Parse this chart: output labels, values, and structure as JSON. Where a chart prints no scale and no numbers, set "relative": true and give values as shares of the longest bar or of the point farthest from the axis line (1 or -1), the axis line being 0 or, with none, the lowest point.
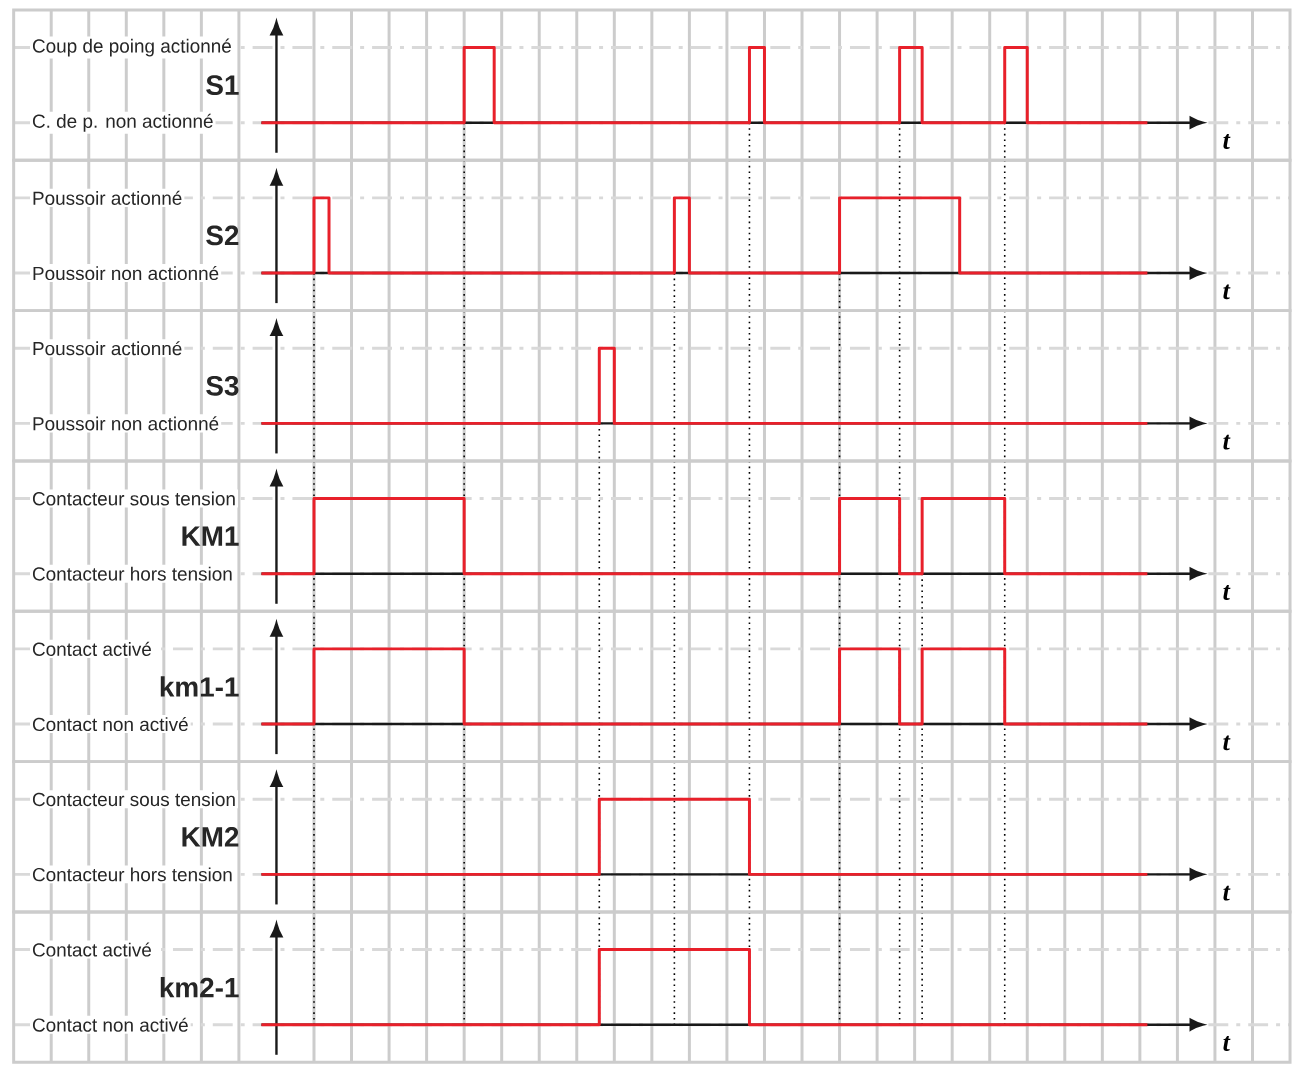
{
  "chart_data": [
    {
      "type": "step",
      "relative": true,
      "ylabel": "S1",
      "xlabel": "t",
      "grid": true,
      "categories": [
        null,
        null,
        null,
        null,
        null,
        null,
        null,
        null,
        null,
        null,
        null,
        null,
        null,
        null,
        null,
        null,
        null,
        null,
        null,
        null,
        null,
        null,
        null,
        null,
        null,
        null,
        null,
        null,
        null,
        null,
        null,
        null,
        null,
        null,
        null,
        null,
        null,
        null,
        null,
        null,
        null,
        null,
        null,
        null,
        null,
        null,
        null,
        null,
        null,
        null,
        null,
        null,
        null,
        null,
        null,
        null,
        null,
        null,
        null,
        null,
        null,
        null,
        null,
        null,
        null,
        null,
        null,
        null,
        null,
        null,
        null,
        null,
        null,
        null,
        null,
        null,
        null,
        null,
        null,
        null,
        null,
        null,
        null,
        null,
        null,
        null,
        null,
        null,
        null,
        null,
        null,
        null,
        null,
        null,
        null,
        null,
        null,
        null,
        null,
        null,
        null,
        null,
        null,
        null,
        null,
        null,
        null,
        null,
        null,
        null,
        null,
        null,
        null,
        null,
        null,
        null,
        null,
        null,
        null
      ],
      "annotations": [
        "C. de p. non actionné",
        "Coup de poing actionné"
      ],
      "series": [
        {
          "color": "#e8202a",
          "values": [
            0,
            0,
            0,
            0,
            0,
            0,
            0,
            0,
            0,
            0,
            0,
            0,
            0,
            0,
            0,
            0,
            0,
            0,
            0,
            0,
            0,
            0,
            0,
            0,
            0,
            0,
            0,
            1,
            1,
            1,
            1,
            0,
            0,
            0,
            0,
            0,
            0,
            0,
            0,
            0,
            0,
            0,
            0,
            0,
            0,
            0,
            0,
            0,
            0,
            0,
            0,
            0,
            0,
            0,
            0,
            0,
            0,
            0,
            0,
            0,
            0,
            0,
            0,
            0,
            0,
            1,
            1,
            0,
            0,
            0,
            0,
            0,
            0,
            0,
            0,
            0,
            0,
            0,
            0,
            0,
            0,
            0,
            0,
            0,
            0,
            1,
            1,
            1,
            0,
            0,
            0,
            0,
            0,
            0,
            0,
            0,
            0,
            0,
            0,
            1,
            1,
            1,
            0,
            0,
            0,
            0,
            0,
            0,
            0,
            0,
            0,
            0,
            0,
            0,
            0,
            0,
            0,
            0,
            0
          ]
        }
      ]
    },
    {
      "type": "step",
      "relative": true,
      "ylabel": "S2",
      "xlabel": "t",
      "grid": true,
      "categories": [
        null,
        null,
        null,
        null,
        null,
        null,
        null,
        null,
        null,
        null,
        null,
        null,
        null,
        null,
        null,
        null,
        null,
        null,
        null,
        null,
        null,
        null,
        null,
        null,
        null,
        null,
        null,
        null,
        null,
        null,
        null,
        null,
        null,
        null,
        null,
        null,
        null,
        null,
        null,
        null,
        null,
        null,
        null,
        null,
        null,
        null,
        null,
        null,
        null,
        null,
        null,
        null,
        null,
        null,
        null,
        null,
        null,
        null,
        null,
        null,
        null,
        null,
        null,
        null,
        null,
        null,
        null,
        null,
        null,
        null,
        null,
        null,
        null,
        null,
        null,
        null,
        null,
        null,
        null,
        null,
        null,
        null,
        null,
        null,
        null,
        null,
        null,
        null,
        null,
        null,
        null,
        null,
        null,
        null,
        null,
        null,
        null,
        null,
        null,
        null,
        null,
        null,
        null,
        null,
        null,
        null,
        null,
        null,
        null,
        null,
        null,
        null,
        null,
        null,
        null,
        null,
        null,
        null,
        null
      ],
      "annotations": [
        "Poussoir non actionné",
        "Poussoir actionné"
      ],
      "series": [
        {
          "color": "#e8202a",
          "values": [
            0,
            0,
            0,
            0,
            0,
            0,
            0,
            1,
            1,
            0,
            0,
            0,
            0,
            0,
            0,
            0,
            0,
            0,
            0,
            0,
            0,
            0,
            0,
            0,
            0,
            0,
            0,
            0,
            0,
            0,
            0,
            0,
            0,
            0,
            0,
            0,
            0,
            0,
            0,
            0,
            0,
            0,
            0,
            0,
            0,
            0,
            0,
            0,
            0,
            0,
            0,
            0,
            0,
            0,
            0,
            1,
            1,
            0,
            0,
            0,
            0,
            0,
            0,
            0,
            0,
            0,
            0,
            0,
            0,
            0,
            0,
            0,
            0,
            0,
            0,
            0,
            0,
            1,
            1,
            1,
            1,
            1,
            1,
            1,
            1,
            1,
            1,
            1,
            1,
            1,
            1,
            1,
            1,
            0,
            0,
            0,
            0,
            0,
            0,
            0,
            0,
            0,
            0,
            0,
            0,
            0,
            0,
            0,
            0,
            0,
            0,
            0,
            0,
            0,
            0,
            0,
            0,
            0,
            0
          ]
        }
      ]
    },
    {
      "type": "step",
      "relative": true,
      "ylabel": "S3",
      "xlabel": "t",
      "grid": true,
      "categories": [
        null,
        null,
        null,
        null,
        null,
        null,
        null,
        null,
        null,
        null,
        null,
        null,
        null,
        null,
        null,
        null,
        null,
        null,
        null,
        null,
        null,
        null,
        null,
        null,
        null,
        null,
        null,
        null,
        null,
        null,
        null,
        null,
        null,
        null,
        null,
        null,
        null,
        null,
        null,
        null,
        null,
        null,
        null,
        null,
        null,
        null,
        null,
        null,
        null,
        null,
        null,
        null,
        null,
        null,
        null,
        null,
        null,
        null,
        null,
        null,
        null,
        null,
        null,
        null,
        null,
        null,
        null,
        null,
        null,
        null,
        null,
        null,
        null,
        null,
        null,
        null,
        null,
        null,
        null,
        null,
        null,
        null,
        null,
        null,
        null,
        null,
        null,
        null,
        null,
        null,
        null,
        null,
        null,
        null,
        null,
        null,
        null,
        null,
        null,
        null,
        null,
        null,
        null,
        null,
        null,
        null,
        null,
        null,
        null,
        null,
        null,
        null,
        null,
        null,
        null,
        null,
        null,
        null,
        null
      ],
      "annotations": [
        "Poussoir non actionné",
        "Poussoir actionné"
      ],
      "series": [
        {
          "color": "#e8202a",
          "values": [
            0,
            0,
            0,
            0,
            0,
            0,
            0,
            0,
            0,
            0,
            0,
            0,
            0,
            0,
            0,
            0,
            0,
            0,
            0,
            0,
            0,
            0,
            0,
            0,
            0,
            0,
            0,
            0,
            0,
            0,
            0,
            0,
            0,
            0,
            0,
            0,
            0,
            0,
            0,
            0,
            0,
            0,
            0,
            0,
            0,
            1,
            1,
            0,
            0,
            0,
            0,
            0,
            0,
            0,
            0,
            0,
            0,
            0,
            0,
            0,
            0,
            0,
            0,
            0,
            0,
            0,
            0,
            0,
            0,
            0,
            0,
            0,
            0,
            0,
            0,
            0,
            0,
            0,
            0,
            0,
            0,
            0,
            0,
            0,
            0,
            0,
            0,
            0,
            0,
            0,
            0,
            0,
            0,
            0,
            0,
            0,
            0,
            0,
            0,
            0,
            0,
            0,
            0,
            0,
            0,
            0,
            0,
            0,
            0,
            0,
            0,
            0,
            0,
            0,
            0,
            0,
            0,
            0,
            0
          ]
        }
      ]
    },
    {
      "type": "step",
      "relative": true,
      "ylabel": "KM1",
      "xlabel": "t",
      "grid": true,
      "categories": [
        null,
        null,
        null,
        null,
        null,
        null,
        null,
        null,
        null,
        null,
        null,
        null,
        null,
        null,
        null,
        null,
        null,
        null,
        null,
        null,
        null,
        null,
        null,
        null,
        null,
        null,
        null,
        null,
        null,
        null,
        null,
        null,
        null,
        null,
        null,
        null,
        null,
        null,
        null,
        null,
        null,
        null,
        null,
        null,
        null,
        null,
        null,
        null,
        null,
        null,
        null,
        null,
        null,
        null,
        null,
        null,
        null,
        null,
        null,
        null,
        null,
        null,
        null,
        null,
        null,
        null,
        null,
        null,
        null,
        null,
        null,
        null,
        null,
        null,
        null,
        null,
        null,
        null,
        null,
        null,
        null,
        null,
        null,
        null,
        null,
        null,
        null,
        null,
        null,
        null,
        null,
        null,
        null,
        null,
        null,
        null,
        null,
        null,
        null,
        null,
        null,
        null,
        null,
        null,
        null,
        null,
        null,
        null,
        null,
        null,
        null,
        null,
        null,
        null,
        null,
        null,
        null,
        null,
        null
      ],
      "annotations": [
        "Contacteur hors tension",
        "Contacteur sous tension"
      ],
      "series": [
        {
          "color": "#e8202a",
          "values": [
            0,
            0,
            0,
            0,
            0,
            0,
            0,
            1,
            1,
            1,
            1,
            1,
            1,
            1,
            1,
            1,
            1,
            1,
            1,
            1,
            1,
            1,
            1,
            1,
            1,
            1,
            1,
            0,
            0,
            0,
            0,
            0,
            0,
            0,
            0,
            0,
            0,
            0,
            0,
            0,
            0,
            0,
            0,
            0,
            0,
            0,
            0,
            0,
            0,
            0,
            0,
            0,
            0,
            0,
            0,
            0,
            0,
            0,
            0,
            0,
            0,
            0,
            0,
            0,
            0,
            0,
            0,
            0,
            0,
            0,
            0,
            0,
            0,
            0,
            0,
            0,
            0,
            1,
            1,
            1,
            1,
            1,
            1,
            1,
            1,
            0,
            0,
            0,
            1,
            1,
            1,
            1,
            1,
            1,
            1,
            1,
            1,
            1,
            1,
            0,
            0,
            0,
            0,
            0,
            0,
            0,
            0,
            0,
            0,
            0,
            0,
            0,
            0,
            0,
            0,
            0,
            0,
            0,
            0
          ]
        }
      ]
    },
    {
      "type": "step",
      "relative": true,
      "ylabel": "km1-1",
      "xlabel": "t",
      "grid": true,
      "categories": [
        null,
        null,
        null,
        null,
        null,
        null,
        null,
        null,
        null,
        null,
        null,
        null,
        null,
        null,
        null,
        null,
        null,
        null,
        null,
        null,
        null,
        null,
        null,
        null,
        null,
        null,
        null,
        null,
        null,
        null,
        null,
        null,
        null,
        null,
        null,
        null,
        null,
        null,
        null,
        null,
        null,
        null,
        null,
        null,
        null,
        null,
        null,
        null,
        null,
        null,
        null,
        null,
        null,
        null,
        null,
        null,
        null,
        null,
        null,
        null,
        null,
        null,
        null,
        null,
        null,
        null,
        null,
        null,
        null,
        null,
        null,
        null,
        null,
        null,
        null,
        null,
        null,
        null,
        null,
        null,
        null,
        null,
        null,
        null,
        null,
        null,
        null,
        null,
        null,
        null,
        null,
        null,
        null,
        null,
        null,
        null,
        null,
        null,
        null,
        null,
        null,
        null,
        null,
        null,
        null,
        null,
        null,
        null,
        null,
        null,
        null,
        null,
        null,
        null,
        null,
        null,
        null,
        null,
        null
      ],
      "annotations": [
        "Contact non activé",
        "Contact activé"
      ],
      "series": [
        {
          "color": "#e8202a",
          "values": [
            0,
            0,
            0,
            0,
            0,
            0,
            0,
            1,
            1,
            1,
            1,
            1,
            1,
            1,
            1,
            1,
            1,
            1,
            1,
            1,
            1,
            1,
            1,
            1,
            1,
            1,
            1,
            0,
            0,
            0,
            0,
            0,
            0,
            0,
            0,
            0,
            0,
            0,
            0,
            0,
            0,
            0,
            0,
            0,
            0,
            0,
            0,
            0,
            0,
            0,
            0,
            0,
            0,
            0,
            0,
            0,
            0,
            0,
            0,
            0,
            0,
            0,
            0,
            0,
            0,
            0,
            0,
            0,
            0,
            0,
            0,
            0,
            0,
            0,
            0,
            0,
            0,
            1,
            1,
            1,
            1,
            1,
            1,
            1,
            1,
            0,
            0,
            0,
            1,
            1,
            1,
            1,
            1,
            1,
            1,
            1,
            1,
            1,
            1,
            0,
            0,
            0,
            0,
            0,
            0,
            0,
            0,
            0,
            0,
            0,
            0,
            0,
            0,
            0,
            0,
            0,
            0,
            0,
            0
          ]
        }
      ]
    },
    {
      "type": "step",
      "relative": true,
      "ylabel": "KM2",
      "xlabel": "t",
      "grid": true,
      "categories": [
        null,
        null,
        null,
        null,
        null,
        null,
        null,
        null,
        null,
        null,
        null,
        null,
        null,
        null,
        null,
        null,
        null,
        null,
        null,
        null,
        null,
        null,
        null,
        null,
        null,
        null,
        null,
        null,
        null,
        null,
        null,
        null,
        null,
        null,
        null,
        null,
        null,
        null,
        null,
        null,
        null,
        null,
        null,
        null,
        null,
        null,
        null,
        null,
        null,
        null,
        null,
        null,
        null,
        null,
        null,
        null,
        null,
        null,
        null,
        null,
        null,
        null,
        null,
        null,
        null,
        null,
        null,
        null,
        null,
        null,
        null,
        null,
        null,
        null,
        null,
        null,
        null,
        null,
        null,
        null,
        null,
        null,
        null,
        null,
        null,
        null,
        null,
        null,
        null,
        null,
        null,
        null,
        null,
        null,
        null,
        null,
        null,
        null,
        null,
        null,
        null,
        null,
        null,
        null,
        null,
        null,
        null,
        null,
        null,
        null,
        null,
        null,
        null,
        null,
        null,
        null,
        null,
        null,
        null
      ],
      "annotations": [
        "Contacteur hors tension",
        "Contacteur sous tension"
      ],
      "series": [
        {
          "color": "#e8202a",
          "values": [
            0,
            0,
            0,
            0,
            0,
            0,
            0,
            0,
            0,
            0,
            0,
            0,
            0,
            0,
            0,
            0,
            0,
            0,
            0,
            0,
            0,
            0,
            0,
            0,
            0,
            0,
            0,
            0,
            0,
            0,
            0,
            0,
            0,
            0,
            0,
            0,
            0,
            0,
            0,
            0,
            0,
            0,
            0,
            0,
            0,
            1,
            1,
            1,
            1,
            1,
            1,
            1,
            1,
            1,
            1,
            1,
            1,
            1,
            1,
            1,
            1,
            1,
            1,
            1,
            1,
            0,
            0,
            0,
            0,
            0,
            0,
            0,
            0,
            0,
            0,
            0,
            0,
            0,
            0,
            0,
            0,
            0,
            0,
            0,
            0,
            0,
            0,
            0,
            0,
            0,
            0,
            0,
            0,
            0,
            0,
            0,
            0,
            0,
            0,
            0,
            0,
            0,
            0,
            0,
            0,
            0,
            0,
            0,
            0,
            0,
            0,
            0,
            0,
            0,
            0,
            0,
            0,
            0,
            0
          ]
        }
      ]
    },
    {
      "type": "step",
      "relative": true,
      "ylabel": "km2-1",
      "xlabel": "t",
      "grid": true,
      "categories": [
        null,
        null,
        null,
        null,
        null,
        null,
        null,
        null,
        null,
        null,
        null,
        null,
        null,
        null,
        null,
        null,
        null,
        null,
        null,
        null,
        null,
        null,
        null,
        null,
        null,
        null,
        null,
        null,
        null,
        null,
        null,
        null,
        null,
        null,
        null,
        null,
        null,
        null,
        null,
        null,
        null,
        null,
        null,
        null,
        null,
        null,
        null,
        null,
        null,
        null,
        null,
        null,
        null,
        null,
        null,
        null,
        null,
        null,
        null,
        null,
        null,
        null,
        null,
        null,
        null,
        null,
        null,
        null,
        null,
        null,
        null,
        null,
        null,
        null,
        null,
        null,
        null,
        null,
        null,
        null,
        null,
        null,
        null,
        null,
        null,
        null,
        null,
        null,
        null,
        null,
        null,
        null,
        null,
        null,
        null,
        null,
        null,
        null,
        null,
        null,
        null,
        null,
        null,
        null,
        null,
        null,
        null,
        null,
        null,
        null,
        null,
        null,
        null,
        null,
        null,
        null,
        null,
        null,
        null
      ],
      "annotations": [
        "Contact non activé",
        "Contact activé"
      ],
      "series": [
        {
          "color": "#e8202a",
          "values": [
            0,
            0,
            0,
            0,
            0,
            0,
            0,
            0,
            0,
            0,
            0,
            0,
            0,
            0,
            0,
            0,
            0,
            0,
            0,
            0,
            0,
            0,
            0,
            0,
            0,
            0,
            0,
            0,
            0,
            0,
            0,
            0,
            0,
            0,
            0,
            0,
            0,
            0,
            0,
            0,
            0,
            0,
            0,
            0,
            0,
            1,
            1,
            1,
            1,
            1,
            1,
            1,
            1,
            1,
            1,
            1,
            1,
            1,
            1,
            1,
            1,
            1,
            1,
            1,
            1,
            0,
            0,
            0,
            0,
            0,
            0,
            0,
            0,
            0,
            0,
            0,
            0,
            0,
            0,
            0,
            0,
            0,
            0,
            0,
            0,
            0,
            0,
            0,
            0,
            0,
            0,
            0,
            0,
            0,
            0,
            0,
            0,
            0,
            0,
            0,
            0,
            0,
            0,
            0,
            0,
            0,
            0,
            0,
            0,
            0,
            0,
            0,
            0,
            0,
            0,
            0,
            0,
            0,
            0
          ]
        }
      ]
    }
  ]
}
